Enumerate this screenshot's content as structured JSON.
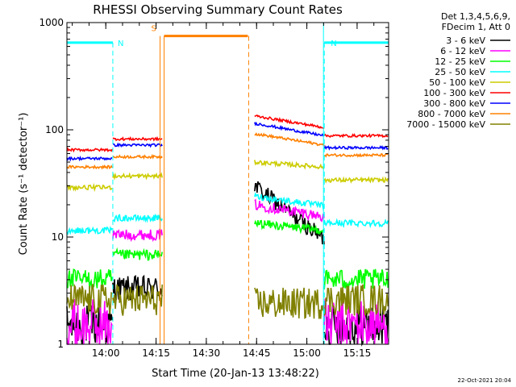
{
  "chart_data": {
    "type": "line",
    "title": "RHESSI Observing Summary Count Rates",
    "xlabel": "Start Time (20-Jan-13 13:48:22)",
    "ylabel": "Count Rate (s⁻¹ detector⁻¹)",
    "yscale": "log",
    "ylim": [
      1,
      1000
    ],
    "xlim_minutes": [
      0,
      96
    ],
    "grid": false,
    "x_ticks": [
      "14:00",
      "14:15",
      "14:30",
      "14:45",
      "15:00",
      "15:15"
    ],
    "x_tick_minutes": [
      11.6,
      26.6,
      41.6,
      56.6,
      71.6,
      86.6
    ],
    "y_ticks": [
      {
        "label": "1",
        "value": 1
      },
      {
        "label": "10",
        "value": 10
      },
      {
        "label": "100",
        "value": 100
      },
      {
        "label": "1000",
        "value": 1000
      }
    ],
    "legend": {
      "placement": "right",
      "header": [
        "Det 1,3,4,5,6,9,",
        "FDecim 1, Att 0"
      ],
      "entries": [
        {
          "label": "3 - 6 keV",
          "color": "#000000"
        },
        {
          "label": "6 - 12 keV",
          "color": "#ff00ff"
        },
        {
          "label": "12 - 25 keV",
          "color": "#00ff00"
        },
        {
          "label": "25 - 50 keV",
          "color": "#00ffff"
        },
        {
          "label": "50 - 100 keV",
          "color": "#cccc00"
        },
        {
          "label": "100 - 300 keV",
          "color": "#ff0000"
        },
        {
          "label": "300 - 800 keV",
          "color": "#0000ff"
        },
        {
          "label": "800 - 7000 keV",
          "color": "#ff8000"
        },
        {
          "label": "7000 - 15000 keV",
          "color": "#808000"
        }
      ]
    },
    "markers": [
      {
        "label": "N",
        "color": "#00ffff",
        "kind": "night",
        "start": 0,
        "end": 13.7,
        "level": 650
      },
      {
        "label": "N",
        "color": "#00ffff",
        "kind": "night",
        "start": 76.8,
        "end": 96,
        "level": 650
      },
      {
        "label": "S",
        "color": "#ff8000",
        "kind": "saa",
        "start": 29.0,
        "end": 54.0,
        "level": 750
      }
    ],
    "gaps": [
      [
        28.5,
        56.0
      ]
    ],
    "series": [
      {
        "name": "3 - 6 keV",
        "color": "#000000",
        "segments": [
          {
            "start": 0,
            "end": 13.7,
            "level": 1.5,
            "noise": 0.2
          },
          {
            "start": 13.7,
            "end": 28.5,
            "level": 3.3,
            "noise": 0.12
          },
          {
            "start": 56.0,
            "end": 76.8,
            "trend": [
              30,
              9.5
            ],
            "noise": 0.08
          },
          {
            "start": 76.8,
            "end": 96,
            "level": 1.5,
            "noise": 0.2
          }
        ]
      },
      {
        "name": "6 - 12 keV",
        "color": "#ff00ff",
        "segments": [
          {
            "start": 0,
            "end": 13.7,
            "level": 1.5,
            "noise": 0.25
          },
          {
            "start": 13.7,
            "end": 28.5,
            "level": 10.5,
            "noise": 0.05
          },
          {
            "start": 56.0,
            "end": 76.8,
            "trend": [
              20,
              15.5
            ],
            "noise": 0.05
          },
          {
            "start": 76.8,
            "end": 96,
            "level": 1.5,
            "noise": 0.25
          }
        ]
      },
      {
        "name": "12 - 25 keV",
        "color": "#00ff00",
        "segments": [
          {
            "start": 0,
            "end": 13.7,
            "level": 4.0,
            "noise": 0.1
          },
          {
            "start": 13.7,
            "end": 28.5,
            "level": 6.8,
            "noise": 0.05
          },
          {
            "start": 56.0,
            "end": 76.8,
            "trend": [
              13.5,
              11.5
            ],
            "noise": 0.04
          },
          {
            "start": 76.8,
            "end": 96,
            "level": 4.0,
            "noise": 0.1
          }
        ]
      },
      {
        "name": "25 - 50 keV",
        "color": "#00ffff",
        "segments": [
          {
            "start": 0,
            "end": 13.7,
            "level": 11.5,
            "noise": 0.03
          },
          {
            "start": 13.7,
            "end": 28.5,
            "level": 15.0,
            "noise": 0.03
          },
          {
            "start": 56.0,
            "end": 76.8,
            "trend": [
              24,
              19.5
            ],
            "noise": 0.03
          },
          {
            "start": 76.8,
            "end": 96,
            "level": 13.5,
            "noise": 0.03
          }
        ]
      },
      {
        "name": "50 - 100 keV",
        "color": "#cccc00",
        "segments": [
          {
            "start": 0,
            "end": 13.7,
            "level": 29,
            "noise": 0.02
          },
          {
            "start": 13.7,
            "end": 28.5,
            "level": 37,
            "noise": 0.02
          },
          {
            "start": 56.0,
            "end": 76.8,
            "trend": [
              50,
              45
            ],
            "noise": 0.02
          },
          {
            "start": 76.8,
            "end": 96,
            "level": 34,
            "noise": 0.02
          }
        ]
      },
      {
        "name": "100 - 300 keV",
        "color": "#ff0000",
        "segments": [
          {
            "start": 0,
            "end": 13.7,
            "level": 65,
            "noise": 0.012
          },
          {
            "start": 13.7,
            "end": 28.5,
            "level": 82,
            "noise": 0.012
          },
          {
            "start": 56.0,
            "end": 76.8,
            "trend": [
              135,
              105
            ],
            "noise": 0.012
          },
          {
            "start": 76.8,
            "end": 96,
            "level": 88,
            "noise": 0.012
          }
        ]
      },
      {
        "name": "300 - 800 keV",
        "color": "#0000ff",
        "segments": [
          {
            "start": 0,
            "end": 13.7,
            "level": 54,
            "noise": 0.012
          },
          {
            "start": 13.7,
            "end": 28.5,
            "level": 72,
            "noise": 0.012
          },
          {
            "start": 56.0,
            "end": 76.8,
            "trend": [
              115,
              88
            ],
            "noise": 0.012
          },
          {
            "start": 76.8,
            "end": 96,
            "level": 68,
            "noise": 0.012
          }
        ]
      },
      {
        "name": "800 - 7000 keV",
        "color": "#ff8000",
        "segments": [
          {
            "start": 0,
            "end": 13.7,
            "level": 45,
            "noise": 0.012
          },
          {
            "start": 13.7,
            "end": 28.5,
            "level": 56,
            "noise": 0.012
          },
          {
            "start": 56.0,
            "end": 76.8,
            "trend": [
              92,
              72
            ],
            "noise": 0.012
          },
          {
            "start": 76.8,
            "end": 96,
            "level": 58,
            "noise": 0.012
          }
        ]
      },
      {
        "name": "7000 - 15000 keV",
        "color": "#808000",
        "segments": [
          {
            "start": 0,
            "end": 13.7,
            "level": 2.6,
            "noise": 0.15
          },
          {
            "start": 13.7,
            "end": 28.5,
            "level": 2.6,
            "noise": 0.15
          },
          {
            "start": 56.0,
            "end": 76.8,
            "level": 2.4,
            "noise": 0.15
          },
          {
            "start": 76.8,
            "end": 96,
            "level": 2.6,
            "noise": 0.15
          }
        ]
      }
    ]
  },
  "footer": {
    "timestamp": "22-Oct-2021 20:04"
  }
}
